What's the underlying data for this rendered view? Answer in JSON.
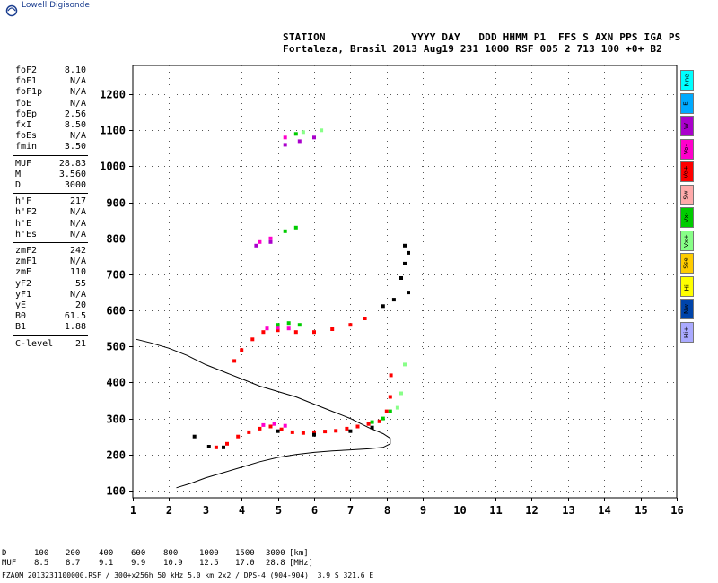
{
  "logo": {
    "text": "Lowell Digisonde",
    "icon": "digisonde-logo-icon"
  },
  "header": {
    "line1": "STATION              YYYY DAY   DDD HHMM P1  FFS S AXN PPS IGA PS",
    "line2": "Fortaleza, Brasil 2013 Aug19 231 1000 RSF 005 2 713 100 +0+ B2"
  },
  "params": {
    "group1": [
      {
        "name": "foF2",
        "value": "8.10"
      },
      {
        "name": "foF1",
        "value": "N/A"
      },
      {
        "name": "foF1p",
        "value": "N/A"
      },
      {
        "name": "foE",
        "value": "N/A"
      },
      {
        "name": "foEp",
        "value": "2.56"
      },
      {
        "name": "fxI",
        "value": "8.50"
      },
      {
        "name": "foEs",
        "value": "N/A"
      },
      {
        "name": "fmin",
        "value": "3.50"
      }
    ],
    "group2": [
      {
        "name": "MUF",
        "value": "28.83"
      },
      {
        "name": "M",
        "value": "3.560"
      },
      {
        "name": "D",
        "value": "3000"
      }
    ],
    "group3": [
      {
        "name": "h'F",
        "value": "217"
      },
      {
        "name": "h'F2",
        "value": "N/A"
      },
      {
        "name": "h'E",
        "value": "N/A"
      },
      {
        "name": "h'Es",
        "value": "N/A"
      }
    ],
    "group4": [
      {
        "name": "zmF2",
        "value": "242"
      },
      {
        "name": "zmF1",
        "value": "N/A"
      },
      {
        "name": "zmE",
        "value": "110"
      },
      {
        "name": "yF2",
        "value": "55"
      },
      {
        "name": "yF1",
        "value": "N/A"
      },
      {
        "name": "yE",
        "value": "20"
      },
      {
        "name": "B0",
        "value": "61.5"
      },
      {
        "name": "B1",
        "value": "1.88"
      }
    ],
    "group5": [
      {
        "name": "C-level",
        "value": "21"
      }
    ]
  },
  "legend": [
    {
      "label": "Nne",
      "color": "#00ffff"
    },
    {
      "label": "E",
      "color": "#00aaff"
    },
    {
      "label": "W",
      "color": "#aa00cc"
    },
    {
      "label": "Vo-",
      "color": "#ff00cc"
    },
    {
      "label": "Vo+",
      "color": "#ff0000"
    },
    {
      "label": "Sw",
      "color": "#ffaaaa"
    },
    {
      "label": "Vx-",
      "color": "#00cc00"
    },
    {
      "label": "Vx+",
      "color": "#88ff88"
    },
    {
      "label": "Sse",
      "color": "#ffcc00"
    },
    {
      "label": "Hi-",
      "color": "#ffff00"
    },
    {
      "label": "Nw",
      "color": "#0044aa"
    },
    {
      "label": "Hi+",
      "color": "#aaaaff"
    }
  ],
  "muf_table": {
    "d_label": "D",
    "muf_label": "MUF",
    "d_values": [
      "100",
      "200",
      "400",
      "600",
      "800",
      "1000",
      "1500",
      "3000"
    ],
    "muf_values": [
      "8.5",
      "8.7",
      "9.1",
      "9.9",
      "10.9",
      "12.5",
      "17.0",
      "28.8"
    ],
    "d_unit": "[km]",
    "muf_unit": "[MHz]"
  },
  "footer": "FZA0M_2013231100000.RSF / 300+x256h 50 kHz 5.0 km 2x2 / DPS-4 (904-904)  3.9 S 321.6 E",
  "chart_data": {
    "type": "scatter",
    "x_ticks": [
      "1",
      "2",
      "3",
      "4",
      "5",
      "6",
      "7",
      "8",
      "9",
      "10",
      "11",
      "12",
      "13",
      "14",
      "15",
      "16"
    ],
    "y_ticks": [
      "100",
      "200",
      "300",
      "400",
      "500",
      "600",
      "700",
      "800",
      "900",
      "1000",
      "1100",
      "1200"
    ],
    "xlim": [
      1,
      16
    ],
    "ylim": [
      80,
      1280
    ],
    "grid": true,
    "series": [
      {
        "color": "#ff0000",
        "points": [
          [
            3.3,
            220
          ],
          [
            3.6,
            230
          ],
          [
            3.9,
            250
          ],
          [
            4.2,
            262
          ],
          [
            4.5,
            272
          ],
          [
            4.8,
            278
          ],
          [
            5.1,
            270
          ],
          [
            5.4,
            262
          ],
          [
            5.7,
            260
          ],
          [
            6.0,
            262
          ],
          [
            6.3,
            264
          ],
          [
            6.6,
            266
          ],
          [
            6.9,
            272
          ],
          [
            7.2,
            278
          ],
          [
            7.5,
            285
          ],
          [
            7.8,
            292
          ],
          [
            8.0,
            320
          ],
          [
            8.1,
            360
          ],
          [
            8.12,
            420
          ],
          [
            3.8,
            460
          ],
          [
            4.0,
            490
          ],
          [
            4.3,
            520
          ],
          [
            4.6,
            540
          ],
          [
            5.0,
            545
          ],
          [
            5.5,
            540
          ],
          [
            6.0,
            540
          ],
          [
            6.5,
            548
          ],
          [
            7.0,
            560
          ],
          [
            7.4,
            578
          ]
        ]
      },
      {
        "color": "#ff00cc",
        "points": [
          [
            4.6,
            282
          ],
          [
            4.9,
            285
          ],
          [
            5.2,
            280
          ],
          [
            4.7,
            550
          ],
          [
            5.0,
            552
          ],
          [
            5.3,
            550
          ],
          [
            4.5,
            790
          ],
          [
            4.8,
            800
          ],
          [
            5.2,
            1080
          ]
        ]
      },
      {
        "color": "#00cc00",
        "points": [
          [
            7.6,
            290
          ],
          [
            7.9,
            300
          ],
          [
            8.1,
            320
          ],
          [
            5.0,
            560
          ],
          [
            5.3,
            565
          ],
          [
            5.6,
            560
          ],
          [
            5.2,
            820
          ],
          [
            5.5,
            830
          ],
          [
            5.5,
            1090
          ]
        ]
      },
      {
        "color": "#000000",
        "points": [
          [
            2.7,
            250
          ],
          [
            3.1,
            222
          ],
          [
            3.5,
            220
          ],
          [
            5.0,
            265
          ],
          [
            6.0,
            255
          ],
          [
            7.0,
            265
          ],
          [
            7.6,
            275
          ],
          [
            7.9,
            612
          ],
          [
            8.2,
            630
          ],
          [
            8.4,
            690
          ],
          [
            8.5,
            730
          ],
          [
            8.6,
            760
          ],
          [
            8.5,
            780
          ],
          [
            8.6,
            650
          ]
        ]
      },
      {
        "color": "#88ff88",
        "points": [
          [
            8.3,
            330
          ],
          [
            8.4,
            370
          ],
          [
            8.5,
            450
          ],
          [
            5.7,
            1095
          ],
          [
            6.2,
            1100
          ]
        ]
      },
      {
        "color": "#aa00cc",
        "points": [
          [
            5.2,
            1060
          ],
          [
            5.6,
            1070
          ],
          [
            6.0,
            1080
          ],
          [
            4.4,
            780
          ],
          [
            4.8,
            790
          ]
        ]
      }
    ],
    "profile": {
      "color": "#000000",
      "points": [
        [
          2.2,
          108
        ],
        [
          2.6,
          120
        ],
        [
          3.0,
          135
        ],
        [
          3.5,
          150
        ],
        [
          4.0,
          165
        ],
        [
          4.5,
          180
        ],
        [
          5.0,
          192
        ],
        [
          5.5,
          200
        ],
        [
          6.0,
          206
        ],
        [
          6.5,
          210
        ],
        [
          7.0,
          213
        ],
        [
          7.5,
          216
        ],
        [
          7.9,
          220
        ],
        [
          8.1,
          230
        ],
        [
          8.1,
          245
        ],
        [
          7.9,
          258
        ],
        [
          7.5,
          275
        ],
        [
          7.0,
          300
        ],
        [
          6.5,
          320
        ],
        [
          6.0,
          340
        ],
        [
          5.5,
          360
        ],
        [
          5.0,
          375
        ],
        [
          4.5,
          390
        ],
        [
          4.0,
          410
        ],
        [
          3.5,
          430
        ],
        [
          3.0,
          450
        ],
        [
          2.5,
          475
        ],
        [
          2.0,
          495
        ],
        [
          1.5,
          510
        ],
        [
          1.1,
          520
        ]
      ]
    }
  }
}
